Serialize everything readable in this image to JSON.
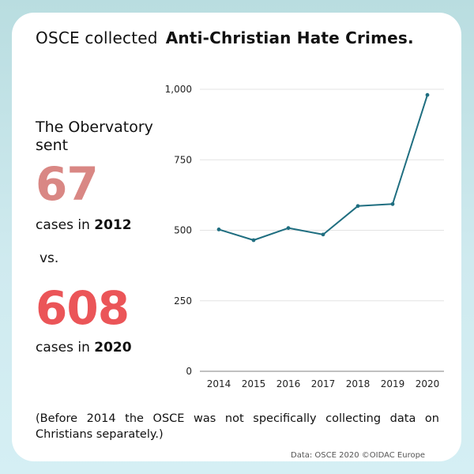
{
  "title": {
    "plain": "OSCE collected",
    "bold": "Anti-Christian Hate Crimes."
  },
  "side": {
    "intro": "The Obervatory sent",
    "number_2012": "67",
    "cases_prefix": "cases in",
    "year_2012": "2012",
    "vs": "vs.",
    "number_2020": "608",
    "year_2020": "2020"
  },
  "note": "(Before 2014 the OSCE was not specifically collecting data on Christians separately.)",
  "source": "Data: OSCE 2020  ©OIDAC Europe",
  "colors": {
    "line": "#1f6e80",
    "accent_light": "#d98784",
    "accent_dark": "#eb5558"
  },
  "chart_data": {
    "type": "line",
    "x": [
      "2014",
      "2015",
      "2016",
      "2017",
      "2018",
      "2019",
      "2020"
    ],
    "series": [
      {
        "values": [
          503,
          465,
          508,
          485,
          586,
          593,
          980
        ]
      }
    ],
    "y_ticks": [
      0,
      250,
      500,
      750,
      1000
    ],
    "y_tick_labels": [
      "0",
      "250",
      "500",
      "750",
      "1,000"
    ],
    "ylim": [
      0,
      1000
    ],
    "grid": true,
    "title": "",
    "xlabel": "",
    "ylabel": ""
  }
}
